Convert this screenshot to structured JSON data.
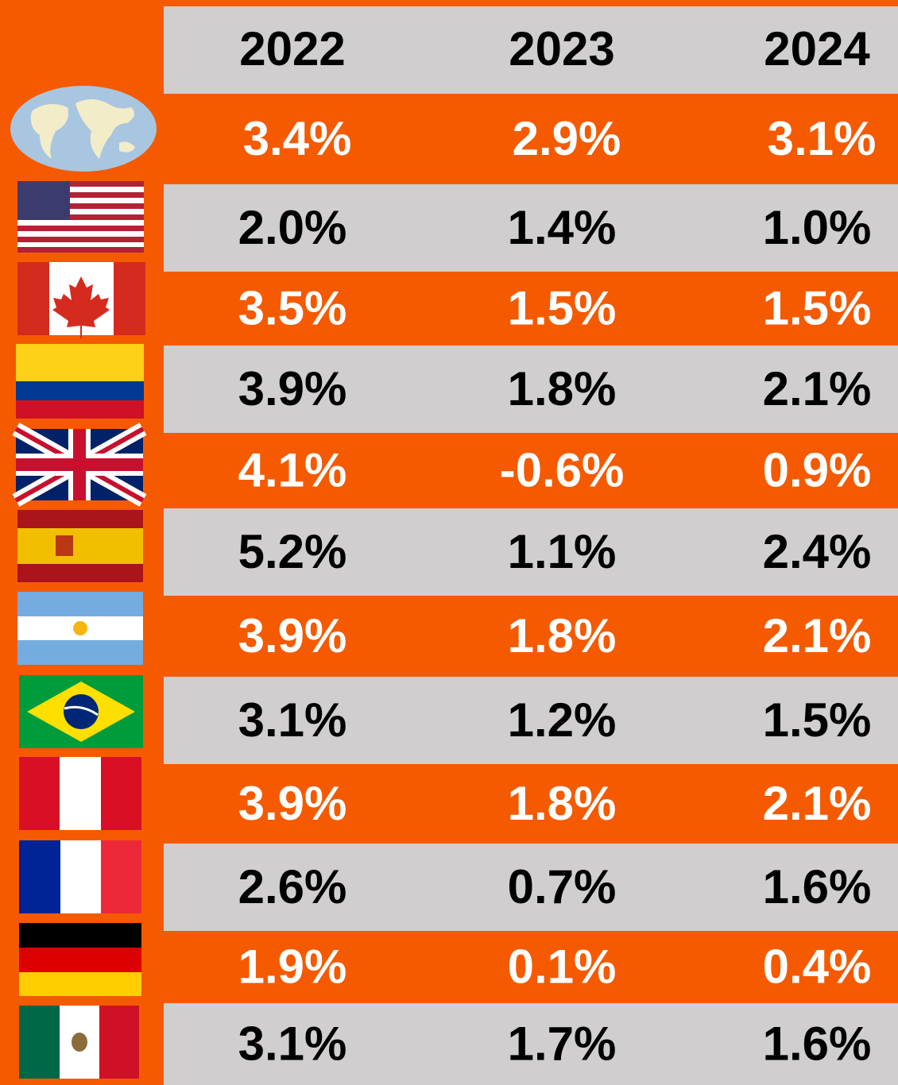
{
  "header": {
    "columns": [
      "2022",
      "2023",
      "2024"
    ]
  },
  "rows": [
    {
      "values": [
        "3.4%",
        "2.9%",
        "3.1%"
      ]
    },
    {
      "values": [
        "2.0%",
        "1.4%",
        "1.0%"
      ]
    },
    {
      "values": [
        "3.5%",
        "1.5%",
        "1.5%"
      ]
    },
    {
      "values": [
        "3.9%",
        "1.8%",
        "2.1%"
      ]
    },
    {
      "values": [
        "4.1%",
        "-0.6%",
        "0.9%"
      ]
    },
    {
      "values": [
        "5.2%",
        "1.1%",
        "2.4%"
      ]
    },
    {
      "values": [
        "3.9%",
        "1.8%",
        "2.1%"
      ]
    },
    {
      "values": [
        "3.1%",
        "1.2%",
        "1.5%"
      ]
    },
    {
      "values": [
        "3.9%",
        "1.8%",
        "2.1%"
      ]
    },
    {
      "values": [
        "2.6%",
        "0.7%",
        "1.6%"
      ]
    },
    {
      "values": [
        "1.9%",
        "0.1%",
        "0.4%"
      ]
    },
    {
      "values": [
        "3.1%",
        "1.7%",
        "1.6%"
      ]
    }
  ]
}
